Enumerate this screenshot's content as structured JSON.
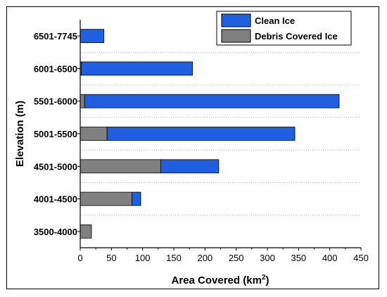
{
  "chart_data": {
    "type": "bar",
    "orientation": "horizontal",
    "stacked": true,
    "categories": [
      "3500-4000",
      "4001-4500",
      "4501-5000",
      "5001-5500",
      "5501-6000",
      "6001-6500",
      "6501-7745"
    ],
    "series": [
      {
        "name": "Debris Covered Ice",
        "color": "#808080",
        "values": [
          18,
          83,
          129,
          43,
          7,
          2,
          0
        ]
      },
      {
        "name": "Clean Ice",
        "color": "#1f5fe0",
        "values": [
          0,
          14,
          93,
          301,
          408,
          178,
          38
        ]
      }
    ],
    "xlabel_main": "Area Covered (km",
    "xlabel_sup": "2",
    "xlabel_close": ")",
    "ylabel": "Elevation (m)",
    "xlim": [
      0,
      450
    ],
    "xticks": [
      0,
      50,
      100,
      150,
      200,
      250,
      300,
      350,
      400,
      450
    ],
    "grid": "dotted horizontal",
    "legend": {
      "position": "top-right",
      "order": [
        "Clean Ice",
        "Debris Covered Ice"
      ]
    }
  }
}
